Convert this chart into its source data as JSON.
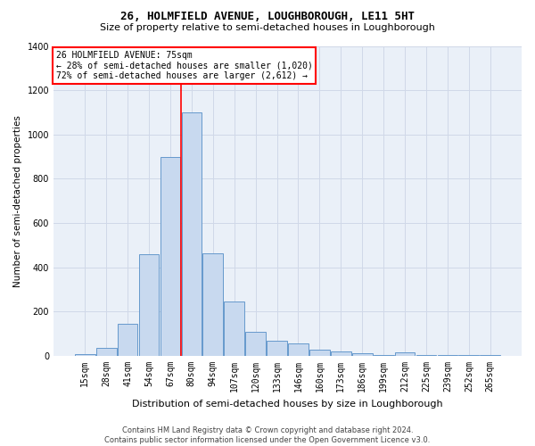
{
  "title1": "26, HOLMFIELD AVENUE, LOUGHBOROUGH, LE11 5HT",
  "title2": "Size of property relative to semi-detached houses in Loughborough",
  "xlabel": "Distribution of semi-detached houses by size in Loughborough",
  "ylabel": "Number of semi-detached properties",
  "footer1": "Contains HM Land Registry data © Crown copyright and database right 2024.",
  "footer2": "Contains public sector information licensed under the Open Government Licence v3.0.",
  "bin_labels": [
    "15sqm",
    "28sqm",
    "41sqm",
    "54sqm",
    "67sqm",
    "80sqm",
    "94sqm",
    "107sqm",
    "120sqm",
    "133sqm",
    "146sqm",
    "160sqm",
    "173sqm",
    "186sqm",
    "199sqm",
    "212sqm",
    "225sqm",
    "239sqm",
    "252sqm",
    "265sqm"
  ],
  "bar_values": [
    10,
    35,
    145,
    460,
    900,
    1100,
    465,
    245,
    108,
    68,
    58,
    28,
    22,
    12,
    5,
    15,
    5,
    5,
    5,
    5
  ],
  "bar_color": "#c8d9ef",
  "bar_edge_color": "#6699cc",
  "grid_color": "#d0d8e8",
  "vline_x": 4.5,
  "vline_color": "red",
  "annotation_text1": "26 HOLMFIELD AVENUE: 75sqm",
  "annotation_text2": "← 28% of semi-detached houses are smaller (1,020)",
  "annotation_text3": "72% of semi-detached houses are larger (2,612) →",
  "annotation_box_color": "#ffffff",
  "annotation_box_edge": "red",
  "ylim": [
    0,
    1400
  ],
  "yticks": [
    0,
    200,
    400,
    600,
    800,
    1000,
    1200,
    1400
  ],
  "bg_color": "#eaf0f8",
  "title1_fontsize": 9,
  "title2_fontsize": 8,
  "xlabel_fontsize": 8,
  "ylabel_fontsize": 7.5,
  "tick_fontsize": 7,
  "annotation_fontsize": 7,
  "footer_fontsize": 6
}
